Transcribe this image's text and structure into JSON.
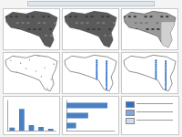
{
  "chart_data": [
    {
      "type": "bar",
      "categories": [
        null,
        null,
        null,
        null,
        null
      ],
      "values": [
        10,
        72,
        18,
        12,
        6
      ],
      "color": "#4a7fc1",
      "ylim": [
        0,
        100
      ],
      "grid": false,
      "tick_labels": false
    },
    {
      "type": "bar",
      "orientation": "horizontal",
      "categories": [
        null,
        null,
        null
      ],
      "values": [
        85,
        45,
        20
      ],
      "color": "#4a7fc1",
      "xlim": [
        0,
        100
      ],
      "grid": false,
      "tick_labels": false
    }
  ]
}
